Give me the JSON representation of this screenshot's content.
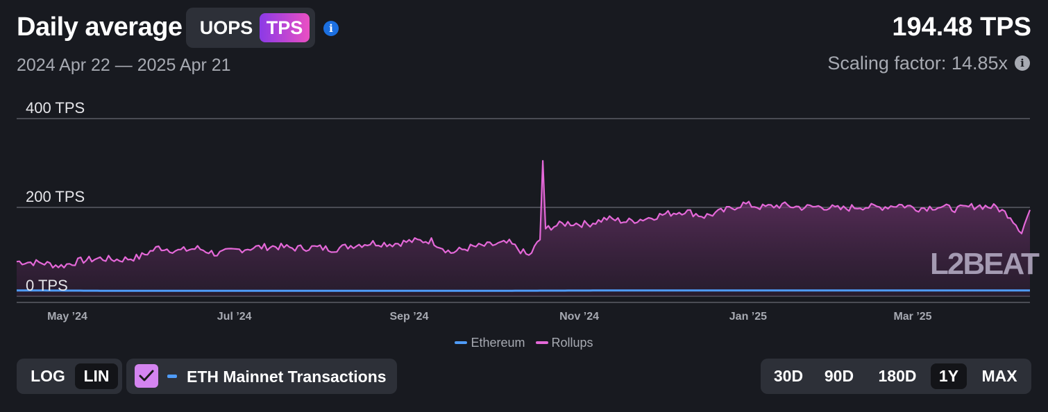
{
  "header": {
    "title": "Daily average",
    "metric_toggle": {
      "options": [
        "UOPS",
        "TPS"
      ],
      "selected": "TPS"
    },
    "info_icon": "info-icon",
    "date_range": "2024 Apr 22 — 2025 Apr 21",
    "current_value": "194.48 TPS",
    "scaling_factor": "Scaling factor: 14.85x"
  },
  "colors": {
    "background": "#181a20",
    "rollups": "#e468d8",
    "ethereum": "#4f9cf9",
    "accent_gradient": [
      "#8b3ae6",
      "#ea4fc3"
    ],
    "info_blue": "#1b6fe0"
  },
  "chart_data": {
    "type": "area",
    "title": "Daily average",
    "ylabel_unit": "TPS",
    "y_ticks": [
      {
        "value": 0,
        "label": "0 TPS"
      },
      {
        "value": 200,
        "label": "200 TPS"
      },
      {
        "value": 400,
        "label": "400 TPS"
      }
    ],
    "ylim": [
      0,
      400
    ],
    "x_ticks": [
      {
        "date": "2024-05-01",
        "label": "May ’24"
      },
      {
        "date": "2024-07-01",
        "label": "Jul ’24"
      },
      {
        "date": "2024-09-01",
        "label": "Sep ’24"
      },
      {
        "date": "2024-11-01",
        "label": "Nov ’24"
      },
      {
        "date": "2025-01-01",
        "label": "Jan ’25"
      },
      {
        "date": "2025-03-01",
        "label": "Mar ’25"
      }
    ],
    "x_range": [
      "2024-04-22",
      "2025-04-21"
    ],
    "grid": true,
    "legend_position": "bottom-center",
    "series": [
      {
        "name": "Rollups",
        "color": "#e468d8",
        "points": [
          [
            "2024-04-22",
            78
          ],
          [
            "2024-05-01",
            75
          ],
          [
            "2024-05-08",
            68
          ],
          [
            "2024-05-15",
            80
          ],
          [
            "2024-05-22",
            85
          ],
          [
            "2024-05-29",
            82
          ],
          [
            "2024-06-05",
            88
          ],
          [
            "2024-06-12",
            110
          ],
          [
            "2024-06-19",
            102
          ],
          [
            "2024-06-26",
            108
          ],
          [
            "2024-07-03",
            95
          ],
          [
            "2024-07-10",
            104
          ],
          [
            "2024-07-17",
            110
          ],
          [
            "2024-07-24",
            112
          ],
          [
            "2024-07-31",
            108
          ],
          [
            "2024-08-07",
            110
          ],
          [
            "2024-08-14",
            106
          ],
          [
            "2024-08-21",
            115
          ],
          [
            "2024-08-28",
            120
          ],
          [
            "2024-09-04",
            118
          ],
          [
            "2024-09-11",
            124
          ],
          [
            "2024-09-18",
            125
          ],
          [
            "2024-09-25",
            98
          ],
          [
            "2024-10-02",
            110
          ],
          [
            "2024-10-09",
            115
          ],
          [
            "2024-10-16",
            120
          ],
          [
            "2024-10-23",
            90
          ],
          [
            "2024-10-30",
            155
          ],
          [
            "2024-11-06",
            165
          ],
          [
            "2024-11-13",
            162
          ],
          [
            "2024-11-20",
            175
          ],
          [
            "2024-11-27",
            168
          ],
          [
            "2024-12-04",
            175
          ],
          [
            "2024-12-11",
            185
          ],
          [
            "2024-12-18",
            192
          ],
          [
            "2024-12-25",
            180
          ],
          [
            "2025-01-01",
            192
          ],
          [
            "2025-01-08",
            208
          ],
          [
            "2025-01-15",
            200
          ],
          [
            "2025-01-22",
            205
          ],
          [
            "2025-01-29",
            200
          ],
          [
            "2025-02-05",
            202
          ],
          [
            "2025-02-12",
            196
          ],
          [
            "2025-02-19",
            202
          ],
          [
            "2025-02-26",
            200
          ],
          [
            "2025-03-05",
            206
          ],
          [
            "2025-03-12",
            198
          ],
          [
            "2025-03-19",
            202
          ],
          [
            "2025-03-26",
            196
          ],
          [
            "2025-04-02",
            204
          ],
          [
            "2025-04-09",
            200
          ],
          [
            "2025-04-14",
            180
          ],
          [
            "2025-04-18",
            145
          ],
          [
            "2025-04-21",
            194
          ]
        ],
        "spike": {
          "date": "2024-10-28",
          "value": 305
        }
      },
      {
        "name": "Ethereum",
        "color": "#4f9cf9",
        "points": [
          [
            "2024-04-22",
            13
          ],
          [
            "2024-06-01",
            12
          ],
          [
            "2024-08-01",
            12
          ],
          [
            "2024-10-01",
            12
          ],
          [
            "2024-12-01",
            13
          ],
          [
            "2025-02-01",
            13
          ],
          [
            "2025-04-01",
            13
          ],
          [
            "2025-04-21",
            13
          ]
        ]
      }
    ]
  },
  "legend": [
    {
      "label": "Ethereum",
      "color": "#4f9cf9"
    },
    {
      "label": "Rollups",
      "color": "#e468d8"
    }
  ],
  "controls": {
    "scale": {
      "options": [
        "LOG",
        "LIN"
      ],
      "selected": "LIN"
    },
    "eth_mainnet": {
      "label": "ETH Mainnet Transactions",
      "checked": true
    },
    "range": {
      "options": [
        "30D",
        "90D",
        "180D",
        "1Y",
        "MAX"
      ],
      "selected": "1Y"
    }
  },
  "watermark": "L2BEAT"
}
